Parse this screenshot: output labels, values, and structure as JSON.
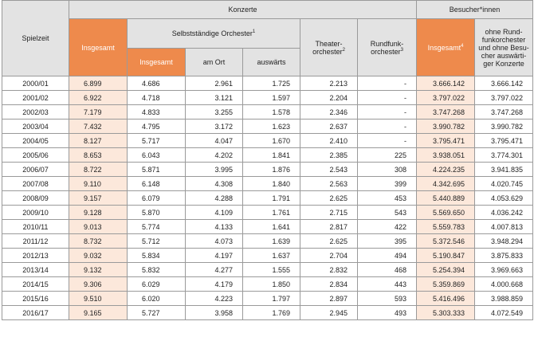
{
  "headers": {
    "spielzeit": "Spielzeit",
    "konzerte": "Konzerte",
    "besucher": "Besucher*innen",
    "insgesamt": "Insgesamt",
    "selbststaendige": "Selbstständige Orchester",
    "selbststaendige_note": "1",
    "sub_insgesamt": "Insgesamt",
    "am_ort": "am Ort",
    "auswaerts": "auswärts",
    "theater": "Theater-orchester",
    "theater_note": "2",
    "rundfunk": "Rundfunk-orchester",
    "rundfunk_note": "3",
    "besucher_insgesamt": "Insgesamt",
    "besucher_insgesamt_note": "4",
    "ohne": "ohne Rund-funkorchester und ohne Besu-cher auswärti-ger Konzerte"
  },
  "rows": [
    {
      "season": "2000/01",
      "total": "6.899",
      "so_total": "4.686",
      "am_ort": "2.961",
      "auswaerts": "1.725",
      "theater": "2.213",
      "rundfunk": "-",
      "vis_total": "3.666.142",
      "vis_ohne": "3.666.142"
    },
    {
      "season": "2001/02",
      "total": "6.922",
      "so_total": "4.718",
      "am_ort": "3.121",
      "auswaerts": "1.597",
      "theater": "2.204",
      "rundfunk": "-",
      "vis_total": "3.797.022",
      "vis_ohne": "3.797.022"
    },
    {
      "season": "2002/03",
      "total": "7.179",
      "so_total": "4.833",
      "am_ort": "3.255",
      "auswaerts": "1.578",
      "theater": "2.346",
      "rundfunk": "-",
      "vis_total": "3.747.268",
      "vis_ohne": "3.747.268"
    },
    {
      "season": "2003/04",
      "total": "7.432",
      "so_total": "4.795",
      "am_ort": "3.172",
      "auswaerts": "1.623",
      "theater": "2.637",
      "rundfunk": "-",
      "vis_total": "3.990.782",
      "vis_ohne": "3.990.782"
    },
    {
      "season": "2004/05",
      "total": "8.127",
      "so_total": "5.717",
      "am_ort": "4.047",
      "auswaerts": "1.670",
      "theater": "2.410",
      "rundfunk": "-",
      "vis_total": "3.795.471",
      "vis_ohne": "3.795.471"
    },
    {
      "season": "2005/06",
      "total": "8.653",
      "so_total": "6.043",
      "am_ort": "4.202",
      "auswaerts": "1.841",
      "theater": "2.385",
      "rundfunk": "225",
      "vis_total": "3.938.051",
      "vis_ohne": "3.774.301"
    },
    {
      "season": "2006/07",
      "total": "8.722",
      "so_total": "5.871",
      "am_ort": "3.995",
      "auswaerts": "1.876",
      "theater": "2.543",
      "rundfunk": "308",
      "vis_total": "4.224.235",
      "vis_ohne": "3.941.835"
    },
    {
      "season": "2007/08",
      "total": "9.110",
      "so_total": "6.148",
      "am_ort": "4.308",
      "auswaerts": "1.840",
      "theater": "2.563",
      "rundfunk": "399",
      "vis_total": "4.342.695",
      "vis_ohne": "4.020.745"
    },
    {
      "season": "2008/09",
      "total": "9.157",
      "so_total": "6.079",
      "am_ort": "4.288",
      "auswaerts": "1.791",
      "theater": "2.625",
      "rundfunk": "453",
      "vis_total": "5.440.889",
      "vis_ohne": "4.053.629"
    },
    {
      "season": "2009/10",
      "total": "9.128",
      "so_total": "5.870",
      "am_ort": "4.109",
      "auswaerts": "1.761",
      "theater": "2.715",
      "rundfunk": "543",
      "vis_total": "5.569.650",
      "vis_ohne": "4.036.242"
    },
    {
      "season": "2010/11",
      "total": "9.013",
      "so_total": "5.774",
      "am_ort": "4.133",
      "auswaerts": "1.641",
      "theater": "2.817",
      "rundfunk": "422",
      "vis_total": "5.559.783",
      "vis_ohne": "4.007.813"
    },
    {
      "season": "2011/12",
      "total": "8.732",
      "so_total": "5.712",
      "am_ort": "4.073",
      "auswaerts": "1.639",
      "theater": "2.625",
      "rundfunk": "395",
      "vis_total": "5.372.546",
      "vis_ohne": "3.948.294"
    },
    {
      "season": "2012/13",
      "total": "9.032",
      "so_total": "5.834",
      "am_ort": "4.197",
      "auswaerts": "1.637",
      "theater": "2.704",
      "rundfunk": "494",
      "vis_total": "5.190.847",
      "vis_ohne": "3.875.833"
    },
    {
      "season": "2013/14",
      "total": "9.132",
      "so_total": "5.832",
      "am_ort": "4.277",
      "auswaerts": "1.555",
      "theater": "2.832",
      "rundfunk": "468",
      "vis_total": "5.254.394",
      "vis_ohne": "3.969.663"
    },
    {
      "season": "2014/15",
      "total": "9.306",
      "so_total": "6.029",
      "am_ort": "4.179",
      "auswaerts": "1.850",
      "theater": "2.834",
      "rundfunk": "443",
      "vis_total": "5.359.869",
      "vis_ohne": "4.000.668"
    },
    {
      "season": "2015/16",
      "total": "9.510",
      "so_total": "6.020",
      "am_ort": "4.223",
      "auswaerts": "1.797",
      "theater": "2.897",
      "rundfunk": "593",
      "vis_total": "5.416.496",
      "vis_ohne": "3.988.859"
    },
    {
      "season": "2016/17",
      "total": "9.165",
      "so_total": "5.727",
      "am_ort": "3.958",
      "auswaerts": "1.769",
      "theater": "2.945",
      "rundfunk": "493",
      "vis_total": "5.303.333",
      "vis_ohne": "4.072.549"
    }
  ],
  "colors": {
    "accent": "#ee8a4c",
    "accent_light": "#fce8db",
    "header_grey": "#e3e3e3"
  }
}
